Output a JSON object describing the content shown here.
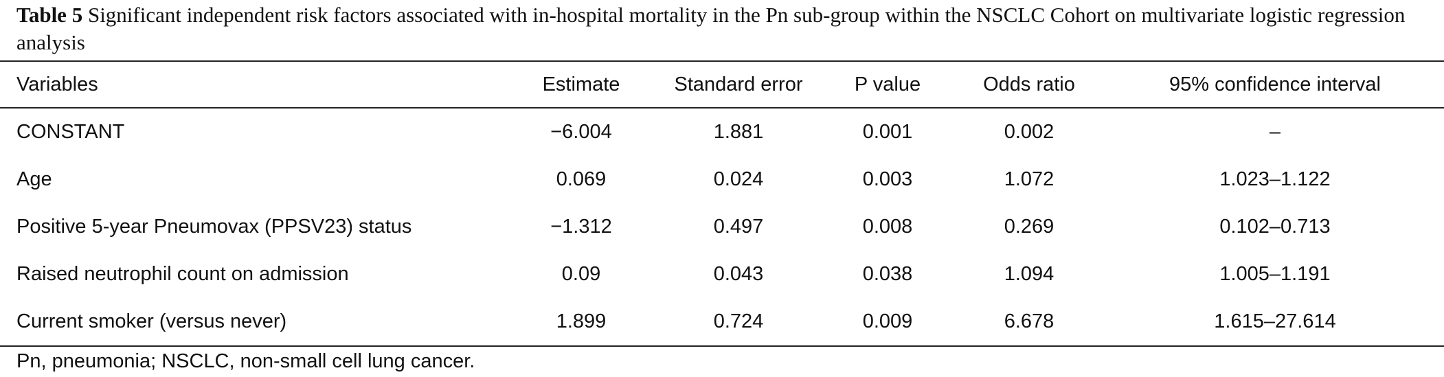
{
  "caption": {
    "label": "Table 5",
    "text": " Significant independent risk factors associated with in-hospital mortality in the Pn sub-group within the NSCLC Cohort on multivariate logistic regression analysis"
  },
  "table": {
    "headers": [
      "Variables",
      "Estimate",
      "Standard error",
      "P value",
      "Odds ratio",
      "95% confidence interval"
    ],
    "rows": [
      [
        "CONSTANT",
        "−6.004",
        "1.881",
        "0.001",
        "0.002",
        "–"
      ],
      [
        "Age",
        "0.069",
        "0.024",
        "0.003",
        "1.072",
        "1.023–1.122"
      ],
      [
        "Positive 5-year Pneumovax (PPSV23) status",
        "−1.312",
        "0.497",
        "0.008",
        "0.269",
        "0.102–0.713"
      ],
      [
        "Raised neutrophil count on admission",
        "0.09",
        "0.043",
        "0.038",
        "1.094",
        "1.005–1.191"
      ],
      [
        "Current smoker (versus never)",
        "1.899",
        "0.724",
        "0.009",
        "6.678",
        "1.615–27.614"
      ]
    ]
  },
  "footnote": "Pn, pneumonia; NSCLC, non-small cell lung cancer."
}
